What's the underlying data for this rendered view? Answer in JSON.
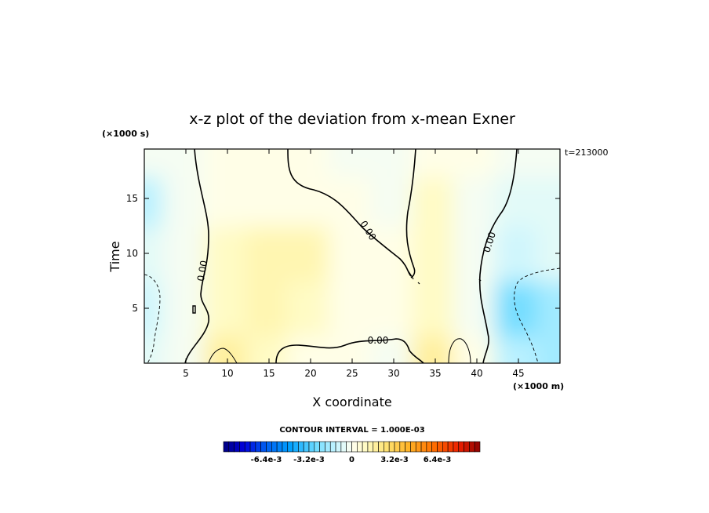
{
  "chart_data": {
    "type": "heatmap",
    "title": "x-z plot of the deviation from x-mean Exner",
    "xlabel": "X coordinate",
    "ylabel": "Time",
    "x_unit": "(×1000 m)",
    "y_unit": "(×1000 s)",
    "time_label": "t=213000",
    "xlim": [
      0,
      50
    ],
    "ylim": [
      0,
      19.5
    ],
    "x_ticks": [
      5,
      10,
      15,
      20,
      25,
      30,
      35,
      40,
      45
    ],
    "y_ticks": [
      5,
      10,
      15
    ],
    "contour_interval_text": "CONTOUR INTERVAL = 1.000E-03",
    "contour_labels": [
      "0.00",
      "0.00",
      "0.00",
      "0.00"
    ],
    "colorbar": {
      "min": -0.0096,
      "max": 0.0096,
      "levels": 48,
      "tick_labels": [
        "-6.4e-3",
        "-3.2e-3",
        "0",
        "3.2e-3",
        "6.4e-3"
      ],
      "tick_values": [
        -0.0064,
        -0.0032,
        0,
        0.0032,
        0.0064
      ]
    },
    "field_samples": {
      "description_values_in_data_units": true,
      "x": [
        0,
        5,
        10,
        15,
        20,
        25,
        30,
        35,
        40,
        45,
        50
      ],
      "t": [
        0,
        5,
        10,
        15,
        19.5
      ],
      "values": [
        [
          -0.0008,
          -0.0004,
          0.0016,
          0.0008,
          0.0004,
          0.0004,
          -0.0004,
          0.0016,
          0.0004,
          -0.0016,
          -0.002
        ],
        [
          -0.0012,
          -0.0004,
          0.0008,
          0.0012,
          0.0008,
          0.0004,
          0.0004,
          0.0008,
          -0.0004,
          -0.0028,
          -0.002
        ],
        [
          -0.0008,
          -0.0004,
          0.0008,
          0.0012,
          0.0012,
          0.0004,
          0.0002,
          0.0008,
          -0.0004,
          -0.0012,
          -0.0008
        ],
        [
          -0.0016,
          -0.0004,
          0.0004,
          0.0004,
          0.0004,
          0.0002,
          -0.0002,
          0.0008,
          -0.0004,
          -0.0008,
          -0.0008
        ],
        [
          -0.0004,
          -0.0004,
          0.0002,
          0.0002,
          0.0002,
          -0.0004,
          -0.0004,
          0.0002,
          0.0002,
          -0.0004,
          -0.0004
        ]
      ]
    }
  }
}
